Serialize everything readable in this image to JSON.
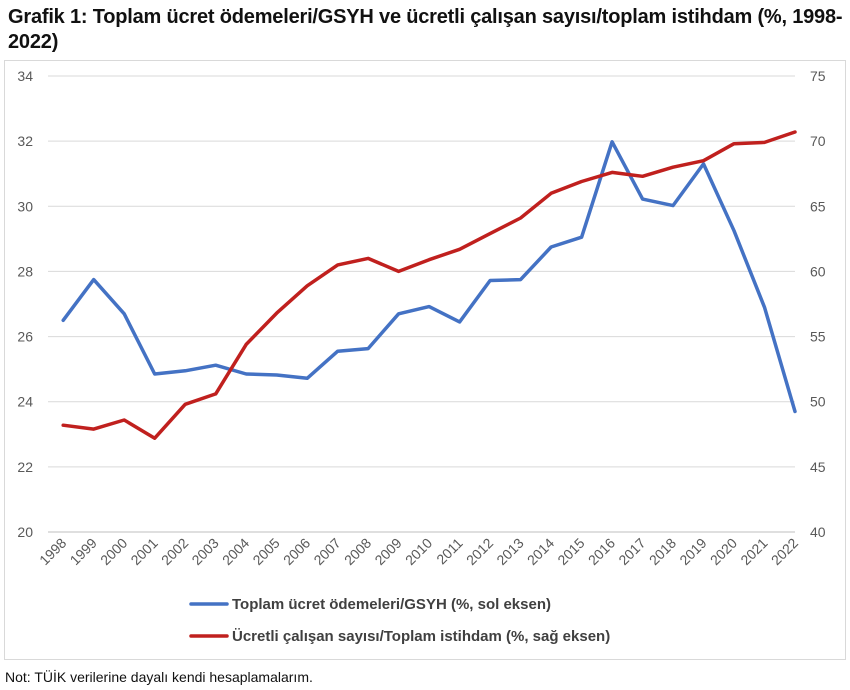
{
  "title": "Grafik 1: Toplam ücret ödemeleri/GSYH ve ücretli çalışan sayısı/toplam istihdam (%, 1998-2022)",
  "note": "Not: TÜİK verilerine dayalı kendi hesaplamalarım.",
  "chart_data": {
    "type": "line",
    "title": "Grafik 1: Toplam ücret ödemeleri/GSYH ve ücretli çalışan sayısı/toplam istihdam (%, 1998-2022)",
    "x": [
      "1998",
      "1999",
      "2000",
      "2001",
      "2002",
      "2003",
      "2004",
      "2005",
      "2006",
      "2007",
      "2008",
      "2009",
      "2010",
      "2011",
      "2012",
      "2013",
      "2014",
      "2015",
      "2016",
      "2017",
      "2018",
      "2019",
      "2020",
      "2021",
      "2022"
    ],
    "y_left": {
      "min": 20,
      "max": 34,
      "ticks": [
        20,
        22,
        24,
        26,
        28,
        30,
        32,
        34
      ]
    },
    "y_right": {
      "min": 40,
      "max": 75,
      "ticks": [
        40,
        45,
        50,
        55,
        60,
        65,
        70,
        75
      ]
    },
    "grid": true,
    "legend_position": "bottom",
    "series": [
      {
        "name": "Toplam ücret ödemeleri/GSYH (%, sol eksen)",
        "axis": "left",
        "color": "#4472C4",
        "values": [
          26.5,
          27.75,
          26.7,
          24.85,
          24.95,
          25.12,
          24.85,
          24.82,
          24.72,
          25.55,
          25.63,
          26.7,
          26.92,
          26.45,
          27.72,
          27.75,
          28.75,
          29.05,
          31.98,
          30.22,
          30.02,
          31.3,
          29.25,
          26.9,
          23.7
        ]
      },
      {
        "name": "Ücretli çalışan sayısı/Toplam istihdam (%, sağ eksen)",
        "axis": "right",
        "color": "#C0201E",
        "values": [
          48.2,
          47.9,
          48.6,
          47.2,
          49.8,
          50.6,
          54.4,
          56.8,
          58.9,
          60.5,
          61.0,
          60.0,
          60.9,
          61.7,
          62.9,
          64.1,
          66.0,
          66.9,
          67.6,
          67.3,
          68.0,
          68.5,
          69.8,
          69.9,
          70.7
        ]
      }
    ]
  }
}
